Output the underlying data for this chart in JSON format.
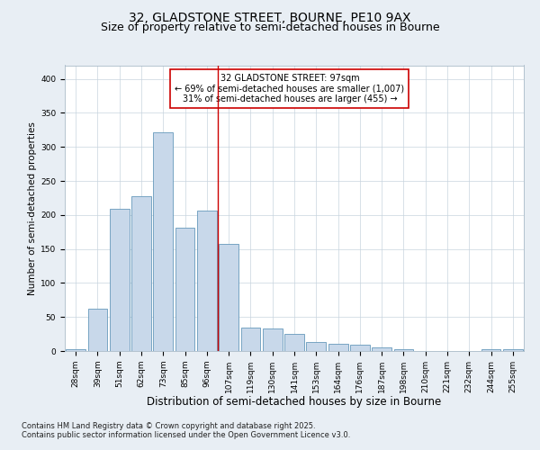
{
  "title1": "32, GLADSTONE STREET, BOURNE, PE10 9AX",
  "title2": "Size of property relative to semi-detached houses in Bourne",
  "xlabel": "Distribution of semi-detached houses by size in Bourne",
  "ylabel": "Number of semi-detached properties",
  "bins": [
    "28sqm",
    "39sqm",
    "51sqm",
    "62sqm",
    "73sqm",
    "85sqm",
    "96sqm",
    "107sqm",
    "119sqm",
    "130sqm",
    "141sqm",
    "153sqm",
    "164sqm",
    "176sqm",
    "187sqm",
    "198sqm",
    "210sqm",
    "221sqm",
    "232sqm",
    "244sqm",
    "255sqm"
  ],
  "values": [
    2,
    62,
    209,
    227,
    322,
    181,
    207,
    157,
    35,
    33,
    25,
    13,
    10,
    9,
    5,
    3,
    0,
    0,
    0,
    2,
    3
  ],
  "bar_color": "#c8d8ea",
  "bar_edge_color": "#6699bb",
  "vline_x_pos": 6.5,
  "vline_color": "#cc0000",
  "annotation_text": "32 GLADSTONE STREET: 97sqm\n← 69% of semi-detached houses are smaller (1,007)\n31% of semi-detached houses are larger (455) →",
  "annotation_box_color": "#ffffff",
  "annotation_box_edge_color": "#cc0000",
  "footer1": "Contains HM Land Registry data © Crown copyright and database right 2025.",
  "footer2": "Contains public sector information licensed under the Open Government Licence v3.0.",
  "ylim": [
    0,
    420
  ],
  "bg_color": "#e8eef4",
  "plot_bg_color": "#ffffff",
  "grid_color": "#c8d4de",
  "title1_fontsize": 10,
  "title2_fontsize": 9,
  "xlabel_fontsize": 8.5,
  "ylabel_fontsize": 7.5,
  "tick_fontsize": 6.5,
  "footer_fontsize": 6,
  "annot_fontsize": 7
}
